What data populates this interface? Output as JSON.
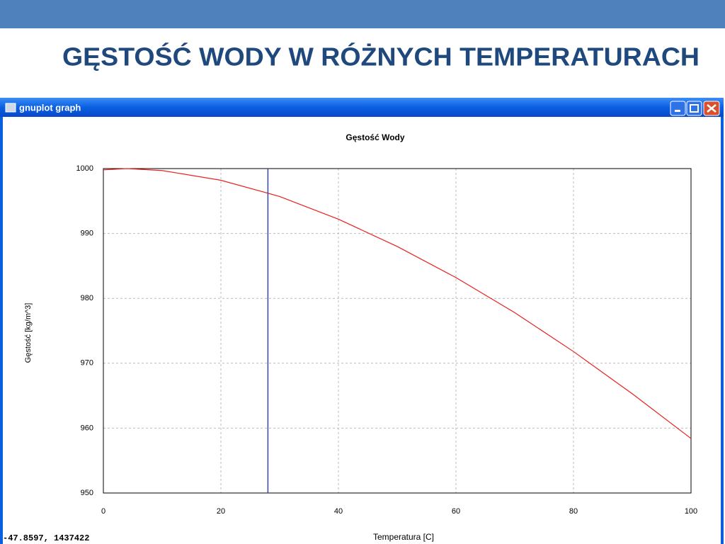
{
  "slide": {
    "title": "GĘSTOŚĆ WODY W RÓŻNYCH TEMPERATURACH"
  },
  "window": {
    "title": "gnuplot graph",
    "status": "-47.8597, 1437422"
  },
  "chart_data": {
    "type": "line",
    "title": "Gęstość Wody",
    "x_label": "Temperatura [C]",
    "y_label": "Gęstość [kg/m^3]",
    "x": [
      0,
      4,
      10,
      20,
      30,
      40,
      50,
      60,
      70,
      80,
      90,
      100
    ],
    "series": [
      {
        "color": "#e8201c",
        "values": [
          999.8,
          1000,
          999.7,
          998.2,
          995.7,
          992.2,
          988.0,
          983.2,
          977.8,
          971.8,
          965.3,
          958.4
        ]
      }
    ],
    "vline_x": 28,
    "vline_color": "#3a44b0",
    "xlim": [
      0,
      100
    ],
    "xticks": [
      0,
      20,
      40,
      60,
      80,
      100
    ],
    "ylim": [
      950,
      1000
    ],
    "yticks": [
      950,
      960,
      970,
      980,
      990,
      1000
    ],
    "grid": true
  }
}
